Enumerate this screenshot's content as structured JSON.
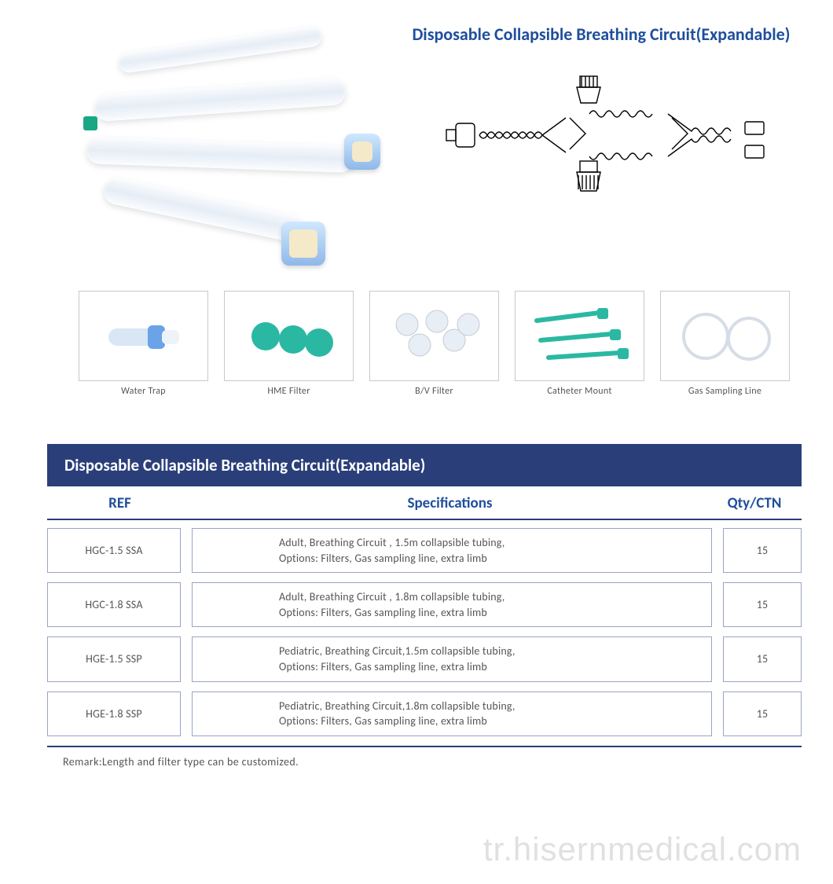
{
  "colors": {
    "brand_blue": "#1f4e9c",
    "header_bar_bg": "#2a3f7a",
    "header_bar_text": "#ffffff",
    "cell_border": "#9aa3c4",
    "thumb_border": "#c9c9c9",
    "body_text": "#555555",
    "hr": "#2a3f7a",
    "watermark": "rgba(0,0,0,0.12)"
  },
  "title": "Disposable Collapsible Breathing Circuit(Expandable)",
  "thumbnails": [
    {
      "caption": "Water Trap"
    },
    {
      "caption": "HME Filter"
    },
    {
      "caption": "B/V Filter"
    },
    {
      "caption": "Catheter Mount"
    },
    {
      "caption": "Gas Sampling Line"
    }
  ],
  "table": {
    "title": "Disposable Collapsible Breathing Circuit(Expandable)",
    "columns": {
      "ref": "REF",
      "spec": "Specifications",
      "qty": "Qty/CTN"
    },
    "rows": [
      {
        "ref": "HGC-1.5 SSA",
        "spec_l1": "Adult, Breathing Circuit , 1.5m collapsible tubing,",
        "spec_l2": "Options: Filters, Gas sampling line, extra limb",
        "qty": "15"
      },
      {
        "ref": "HGC-1.8 SSA",
        "spec_l1": "Adult, Breathing Circuit , 1.8m collapsible tubing,",
        "spec_l2": "Options: Filters, Gas sampling line, extra limb",
        "qty": "15"
      },
      {
        "ref": "HGE-1.5 SSP",
        "spec_l1": "Pediatric, Breathing Circuit,1.5m collapsible tubing,",
        "spec_l2": "Options: Filters, Gas sampling line, extra limb",
        "qty": "15"
      },
      {
        "ref": "HGE-1.8 SSP",
        "spec_l1": "Pediatric, Breathing Circuit,1.8m collapsible tubing,",
        "spec_l2": "Options: Filters, Gas sampling line, extra limb",
        "qty": "15"
      }
    ],
    "remark": "Remark:Length and filter type can be customized."
  },
  "watermark": "tr.hisernmedical.com"
}
